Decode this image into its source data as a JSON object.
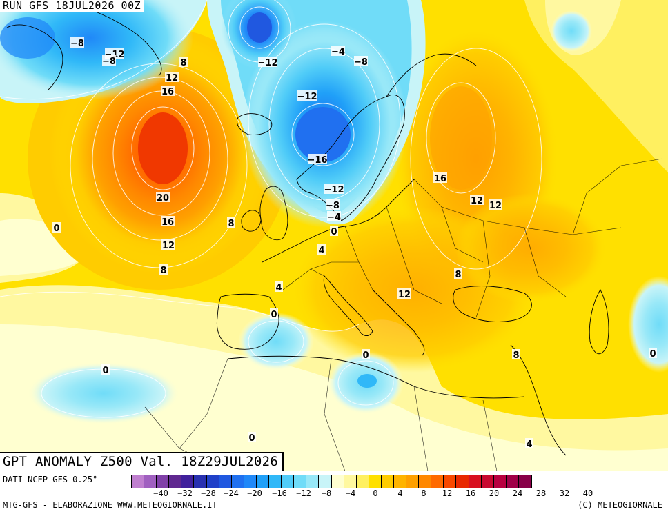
{
  "run_label": "RUN GFS 18JUL2026 00Z",
  "title": "GPT ANOMALY Z500 Val. 18Z29JUL2026",
  "source": "DATI NCEP GFS 0.25°",
  "credit_left": "MTG-GFS - ELABORAZIONE WWW.METEOGIORNALE.IT",
  "credit_right": "(C) METEOGIORNALE",
  "colorbar": {
    "colors": [
      "#c080d0",
      "#a060c0",
      "#8040a8",
      "#602890",
      "#40209c",
      "#2830b0",
      "#2040c8",
      "#2058e0",
      "#2070f0",
      "#2088f8",
      "#20a0f8",
      "#30b8f8",
      "#50ccf8",
      "#70dcf8",
      "#98e8f8",
      "#c8f4f8",
      "#ffffd0",
      "#fff8a0",
      "#fff060",
      "#ffe000",
      "#ffcc00",
      "#ffb400",
      "#ffa000",
      "#ff8800",
      "#ff6a00",
      "#f84800",
      "#e82800",
      "#d81020",
      "#c80830",
      "#b80040",
      "#a00048",
      "#880048"
    ],
    "ticks": [
      "-40",
      "-32",
      "-28",
      "-24",
      "-20",
      "-16",
      "-12",
      "-8",
      "-4",
      "0",
      "4",
      "8",
      "12",
      "16",
      "20",
      "24",
      "28",
      "32",
      "40"
    ]
  },
  "contour_labels": [
    {
      "text": "-8"
    },
    {
      "text": "-12"
    },
    {
      "text": "-8"
    },
    {
      "text": "8"
    },
    {
      "text": "12"
    },
    {
      "text": "16"
    },
    {
      "text": "20"
    },
    {
      "text": "16"
    },
    {
      "text": "12"
    },
    {
      "text": "8"
    },
    {
      "text": "0"
    },
    {
      "text": "8"
    },
    {
      "text": "-12"
    },
    {
      "text": "-4"
    },
    {
      "text": "-8"
    },
    {
      "text": "-12"
    },
    {
      "text": "-16"
    },
    {
      "text": "-12"
    },
    {
      "text": "-8"
    },
    {
      "text": "-4"
    },
    {
      "text": "0"
    },
    {
      "text": "4"
    },
    {
      "text": "4"
    },
    {
      "text": "0"
    },
    {
      "text": "16"
    },
    {
      "text": "12"
    },
    {
      "text": "12"
    },
    {
      "text": "8"
    },
    {
      "text": "12"
    },
    {
      "text": "8"
    },
    {
      "text": "0"
    },
    {
      "text": "0"
    },
    {
      "text": "0"
    },
    {
      "text": "0"
    },
    {
      "text": "4"
    }
  ]
}
